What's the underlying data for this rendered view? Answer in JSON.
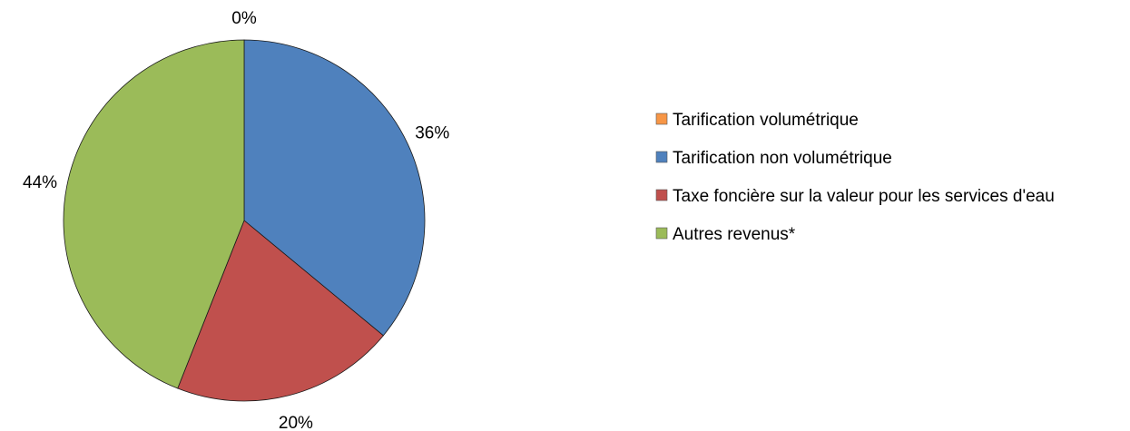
{
  "chart_data": {
    "type": "pie",
    "categories": [
      "Tarification volumétrique",
      "Tarification non volumétrique",
      "Taxe foncière sur la valeur pour les services d'eau",
      "Autres revenus*"
    ],
    "values": [
      0,
      36,
      20,
      44
    ],
    "labels": [
      "0%",
      "36%",
      "20%",
      "44%"
    ],
    "colors": [
      "#F79646",
      "#4F81BD",
      "#C0504D",
      "#9BBB59"
    ],
    "legend_position": "right",
    "start_angle": "12 o'clock",
    "direction": "clockwise"
  }
}
